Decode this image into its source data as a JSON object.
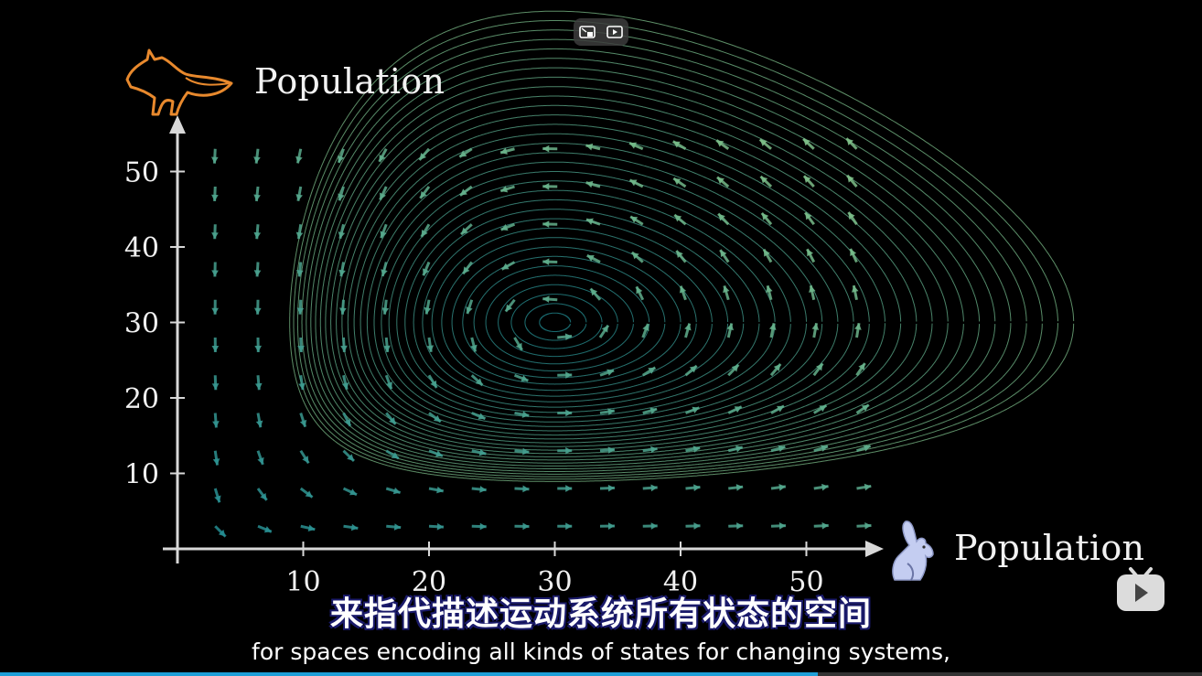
{
  "video": {
    "progress_fraction": 0.68
  },
  "controls": {
    "pip_icon": "picture-in-picture-icon",
    "play_icon": "video-play-icon"
  },
  "axes": {
    "y_title": "Population",
    "x_title": "Population",
    "y_icon": "fox-icon",
    "x_icon": "rabbit-icon"
  },
  "chart_data": {
    "type": "scatter",
    "title": "",
    "xlabel": "Population",
    "ylabel": "Population",
    "xlim": [
      0,
      56
    ],
    "ylim": [
      0,
      56
    ],
    "x_ticks": [
      "10",
      "20",
      "30",
      "40",
      "50"
    ],
    "y_ticks": [
      "10",
      "20",
      "30",
      "40",
      "50"
    ],
    "equilibrium": [
      30,
      30
    ],
    "grid": false,
    "colors": {
      "cool": "#1f8a93",
      "warm": "#7fc08a",
      "axis": "#d8d8d8",
      "fox": "#e8892d",
      "rabbit": "#c4cdf1"
    }
  },
  "subtitles": {
    "chinese": "来指代描述运动系统所有状态的空间",
    "english": "for spaces encoding all kinds of states for changing systems,"
  },
  "brand": {
    "logo_icon": "bilibili-tv-icon"
  }
}
